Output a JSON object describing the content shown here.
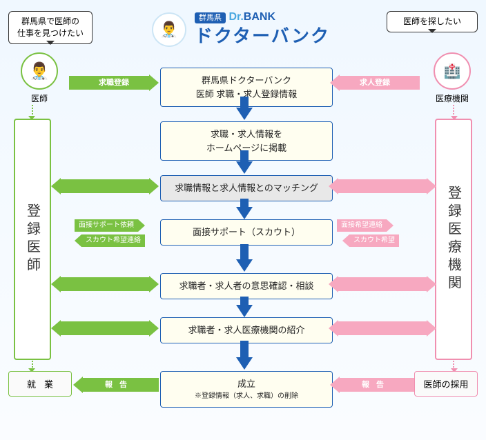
{
  "bubbles": {
    "left": "群馬県で医師の\n仕事を見つけたい",
    "right": "医師を探したい"
  },
  "avatars": {
    "doctor_label": "医師",
    "hospital_label": "医療機関"
  },
  "title": {
    "tag": "群馬県",
    "brand_a": "Dr.",
    "brand_b": "BANK",
    "main": "ドクターバンク"
  },
  "steps": {
    "s1": "群馬県ドクターバンク\n医師 求職・求人登録情報",
    "s2": "求職・求人情報を\nホームページに掲載",
    "s3": "求職情報と求人情報とのマッチング",
    "s4": "面接サポート（スカウト）",
    "s5": "求職者・求人者の意思確認・相談",
    "s6": "求職者・求人医療機関の紹介",
    "s7_main": "成立",
    "s7_sub": "※登録情報（求人、求職）の削除"
  },
  "vcol": {
    "left": "登録医師",
    "right": "登録医療機関"
  },
  "end": {
    "left": "就業",
    "right": "医師の採用"
  },
  "arrows": {
    "reg_left": "求職登録",
    "reg_right": "求人登録",
    "g_support": "面接サポート依頼",
    "g_scout": "スカウト希望連絡",
    "p_interview": "面接希望連絡",
    "p_scout": "スカウト希望",
    "report": "報告",
    "report2": "報告"
  },
  "colors": {
    "blue": "#1e5fb3",
    "green": "#7ac142",
    "pink": "#f7a8c0",
    "pink_border": "#f08fb0",
    "step_bg": "#fffef0",
    "gray_bg": "#e8e8e8"
  }
}
